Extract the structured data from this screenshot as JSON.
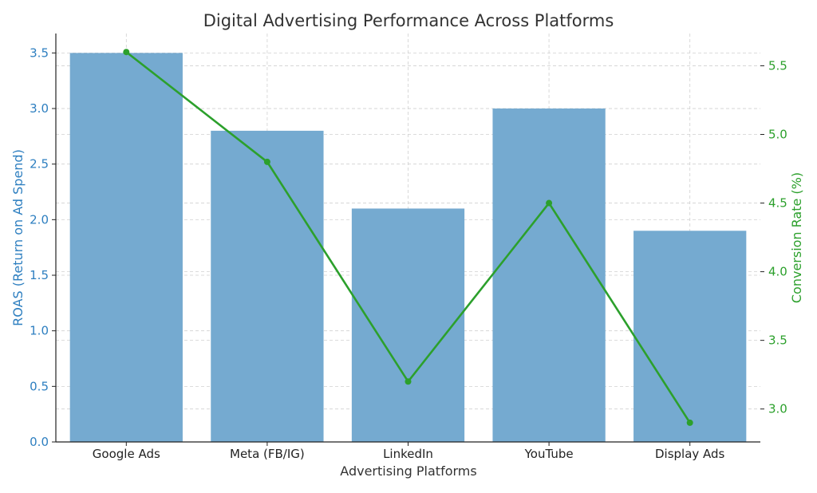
{
  "chart_data": {
    "type": "bar+line",
    "title": "Digital Advertising Performance Across Platforms",
    "xlabel": "Advertising Platforms",
    "categories": [
      "Google Ads",
      "Meta (FB/IG)",
      "LinkedIn",
      "YouTube",
      "Display Ads"
    ],
    "series": [
      {
        "name": "ROAS (Return on Ad Spend)",
        "type": "bar",
        "axis": "left",
        "values": [
          3.5,
          2.8,
          2.1,
          3.0,
          1.9
        ],
        "color": "#75aad0"
      },
      {
        "name": "Conversion Rate (%)",
        "type": "line",
        "axis": "right",
        "values": [
          5.6,
          4.8,
          3.2,
          4.5,
          2.9
        ],
        "color": "#2ca02c"
      }
    ],
    "y_left": {
      "label": "ROAS (Return on Ad Spend)",
      "lim": [
        0,
        3.675
      ],
      "ticks": [
        "0.0",
        "0.5",
        "1.0",
        "1.5",
        "2.0",
        "2.5",
        "3.0",
        "3.5"
      ],
      "color": "#2e7fc0"
    },
    "y_right": {
      "label": "Conversion Rate (%)",
      "lim": [
        2.76,
        5.735
      ],
      "ticks": [
        "3.0",
        "3.5",
        "4.0",
        "4.5",
        "5.0",
        "5.5"
      ],
      "color": "#2ca02c"
    },
    "grid": true
  }
}
